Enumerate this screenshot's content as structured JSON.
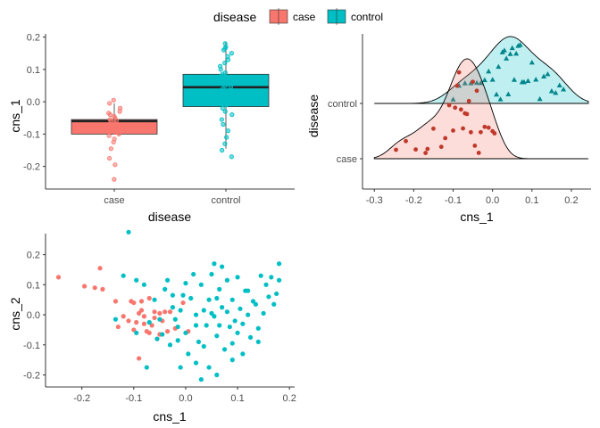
{
  "legend": {
    "title": "disease",
    "items": [
      {
        "label": "case",
        "color": "#F8766D"
      },
      {
        "label": "control",
        "color": "#00BFC4"
      }
    ]
  },
  "chart_data": [
    {
      "type": "box",
      "xlabel": "disease",
      "ylabel": "cns_1",
      "categories": [
        "case",
        "control"
      ],
      "ylim": [
        -0.27,
        0.21
      ],
      "yticks": [
        "0.2",
        "0.1",
        "0.0",
        "-0.1",
        "-0.2"
      ],
      "colors": [
        "#F8766D",
        "#00BFC4"
      ],
      "boxes": [
        {
          "group": "case",
          "q1": -0.1,
          "median": -0.06,
          "q3": -0.055,
          "whisker_low": -0.1,
          "whisker_high": -0.005
        },
        {
          "group": "control",
          "q1": -0.015,
          "median": 0.045,
          "q3": 0.085,
          "whisker_low": -0.145,
          "whisker_high": 0.185
        }
      ],
      "jitter": {
        "case": [
          -0.24,
          -0.195,
          -0.175,
          -0.145,
          -0.125,
          -0.115,
          -0.105,
          -0.1,
          -0.095,
          -0.09,
          -0.085,
          -0.08,
          -0.075,
          -0.07,
          -0.065,
          -0.06,
          -0.058,
          -0.055,
          -0.05,
          -0.045,
          -0.04,
          -0.035,
          -0.03,
          -0.02,
          -0.005,
          0.005
        ],
        "control": [
          -0.17,
          -0.15,
          -0.13,
          -0.11,
          -0.09,
          -0.07,
          -0.055,
          -0.04,
          -0.03,
          -0.02,
          -0.01,
          0.0,
          0.01,
          0.015,
          0.02,
          0.025,
          0.03,
          0.035,
          0.04,
          0.045,
          0.05,
          0.055,
          0.06,
          0.065,
          0.07,
          0.075,
          0.08,
          0.085,
          0.09,
          0.1,
          0.11,
          0.12,
          0.13,
          0.14,
          0.15,
          0.16,
          0.165,
          0.17,
          0.18
        ]
      }
    },
    {
      "type": "ridgeline",
      "xlabel": "cns_1",
      "ylabel": "disease",
      "categories": [
        "case",
        "control"
      ],
      "xlim": [
        -0.33,
        0.25
      ],
      "xticks": [
        "-0.3",
        "-0.2",
        "-0.1",
        "0.0",
        "0.1",
        "0.2"
      ],
      "colors": [
        "#F8766D",
        "#00BFC4"
      ],
      "points": {
        "case": [
          -0.245,
          -0.22,
          -0.195,
          -0.17,
          -0.165,
          -0.15,
          -0.13,
          -0.12,
          -0.11,
          -0.1,
          -0.095,
          -0.09,
          -0.085,
          -0.08,
          -0.075,
          -0.07,
          -0.065,
          -0.06,
          -0.055,
          -0.05,
          -0.045,
          -0.04,
          -0.035,
          -0.03,
          -0.02,
          -0.01,
          0.0,
          0.005
        ],
        "control": [
          -0.1,
          -0.085,
          -0.07,
          -0.055,
          -0.04,
          -0.03,
          -0.02,
          -0.01,
          0.0,
          0.01,
          0.015,
          0.02,
          0.025,
          0.03,
          0.035,
          0.04,
          0.045,
          0.05,
          0.055,
          0.06,
          0.065,
          0.07,
          0.075,
          0.08,
          0.09,
          0.1,
          0.11,
          0.12,
          0.13,
          0.14,
          0.15,
          0.16,
          0.17,
          0.18
        ]
      }
    },
    {
      "type": "scatter",
      "xlabel": "cns_1",
      "ylabel": "cns_2",
      "xlim": [
        -0.27,
        0.21
      ],
      "ylim": [
        -0.24,
        0.27
      ],
      "xticks": [
        "-0.2",
        "-0.1",
        "0.0",
        "0.1",
        "0.2"
      ],
      "yticks": [
        "0.2",
        "0.1",
        "0.0",
        "-0.1",
        "-0.2"
      ],
      "series": [
        {
          "name": "case",
          "color": "#F8766D",
          "points": [
            [
              -0.245,
              0.125
            ],
            [
              -0.195,
              0.095
            ],
            [
              -0.175,
              0.09
            ],
            [
              -0.165,
              0.155
            ],
            [
              -0.16,
              0.085
            ],
            [
              -0.135,
              0.045
            ],
            [
              -0.13,
              -0.04
            ],
            [
              -0.12,
              -0.005
            ],
            [
              -0.11,
              -0.02
            ],
            [
              -0.105,
              0.045
            ],
            [
              -0.1,
              0.04
            ],
            [
              -0.1,
              -0.05
            ],
            [
              -0.095,
              -0.025
            ],
            [
              -0.09,
              0.005
            ],
            [
              -0.09,
              -0.145
            ],
            [
              -0.085,
              0.015
            ],
            [
              -0.085,
              0.045
            ],
            [
              -0.08,
              -0.005
            ],
            [
              -0.08,
              -0.03
            ],
            [
              -0.075,
              -0.055
            ],
            [
              -0.07,
              0.055
            ],
            [
              -0.07,
              -0.06
            ],
            [
              -0.065,
              -0.035
            ],
            [
              -0.06,
              0.01
            ],
            [
              -0.06,
              -0.01
            ],
            [
              -0.055,
              -0.08
            ],
            [
              -0.05,
              0.005
            ],
            [
              -0.05,
              -0.065
            ],
            [
              -0.045,
              -0.02
            ],
            [
              -0.04,
              0.01
            ],
            [
              -0.035,
              -0.055
            ],
            [
              -0.03,
              0.01
            ],
            [
              -0.02,
              -0.045
            ],
            [
              -0.005,
              0.04
            ],
            [
              0.005,
              -0.055
            ]
          ]
        },
        {
          "name": "control",
          "color": "#00BFC4",
          "points": [
            [
              -0.11,
              0.275
            ],
            [
              -0.135,
              -0.015
            ],
            [
              -0.12,
              0.13
            ],
            [
              -0.095,
              0.115
            ],
            [
              -0.095,
              -0.06
            ],
            [
              -0.08,
              0.1
            ],
            [
              -0.075,
              -0.175
            ],
            [
              -0.07,
              -0.025
            ],
            [
              -0.06,
              0.05
            ],
            [
              -0.055,
              -0.08
            ],
            [
              -0.05,
              -0.015
            ],
            [
              -0.045,
              -0.065
            ],
            [
              -0.04,
              0.085
            ],
            [
              -0.035,
              0.115
            ],
            [
              -0.03,
              -0.1
            ],
            [
              -0.025,
              0.025
            ],
            [
              -0.02,
              -0.015
            ],
            [
              -0.015,
              -0.04
            ],
            [
              -0.01,
              0.015
            ],
            [
              -0.005,
              0.065
            ],
            [
              0.0,
              -0.06
            ],
            [
              0.005,
              -0.13
            ],
            [
              0.01,
              0.055
            ],
            [
              0.015,
              0.135
            ],
            [
              0.02,
              0.0
            ],
            [
              0.02,
              -0.035
            ],
            [
              0.025,
              -0.09
            ],
            [
              0.03,
              0.1
            ],
            [
              0.035,
              0.015
            ],
            [
              0.035,
              -0.105
            ],
            [
              0.04,
              -0.035
            ],
            [
              0.045,
              0.05
            ],
            [
              0.05,
              0.135
            ],
            [
              0.05,
              0.005
            ],
            [
              0.055,
              -0.005
            ],
            [
              0.055,
              0.17
            ],
            [
              0.06,
              -0.07
            ],
            [
              0.065,
              0.085
            ],
            [
              0.065,
              -0.035
            ],
            [
              0.07,
              0.025
            ],
            [
              0.075,
              -0.115
            ],
            [
              0.08,
              0.115
            ],
            [
              0.08,
              0.01
            ],
            [
              0.085,
              -0.04
            ],
            [
              0.09,
              0.05
            ],
            [
              0.095,
              -0.02
            ],
            [
              0.1,
              0.125
            ],
            [
              0.1,
              -0.06
            ],
            [
              0.105,
              0.02
            ],
            [
              0.11,
              -0.03
            ],
            [
              0.115,
              0.08
            ],
            [
              0.12,
              0.0
            ],
            [
              0.125,
              -0.075
            ],
            [
              0.13,
              0.045
            ],
            [
              0.135,
              0.035
            ],
            [
              0.14,
              -0.045
            ],
            [
              0.145,
              0.13
            ],
            [
              0.15,
              0.005
            ],
            [
              0.155,
              0.1
            ],
            [
              0.16,
              0.06
            ],
            [
              0.165,
              0.125
            ],
            [
              0.17,
              0.035
            ],
            [
              0.175,
              0.07
            ],
            [
              0.18,
              0.17
            ],
            [
              0.18,
              0.115
            ],
            [
              0.045,
              -0.175
            ],
            [
              0.03,
              -0.215
            ],
            [
              0.09,
              -0.15
            ],
            [
              -0.01,
              -0.175
            ],
            [
              0.11,
              -0.13
            ],
            [
              0.14,
              -0.09
            ],
            [
              0.06,
              -0.2
            ],
            [
              0.02,
              -0.16
            ],
            [
              0.0,
              0.105
            ],
            [
              -0.025,
              0.065
            ],
            [
              0.06,
              0.055
            ],
            [
              0.12,
              0.08
            ],
            [
              0.07,
              0.16
            ],
            [
              -0.015,
              -0.085
            ],
            [
              0.09,
              -0.095
            ]
          ]
        }
      ]
    }
  ]
}
